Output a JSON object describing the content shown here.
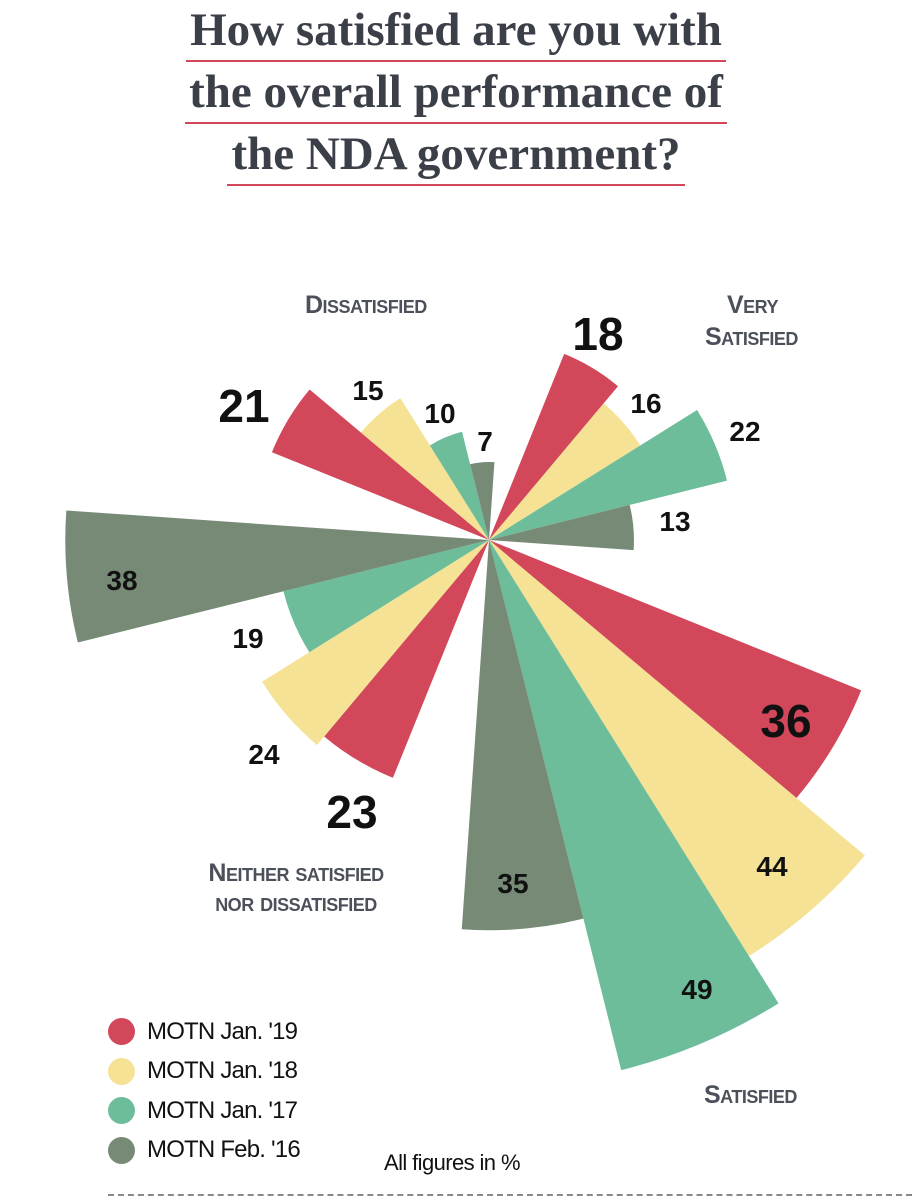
{
  "title_lines": [
    "How satisfied are you with",
    "the overall performance of",
    "the NDA government?"
  ],
  "note": "All figures in %",
  "chart_data": {
    "type": "polar-area",
    "title": "How satisfied are you with the overall performance of the NDA government?",
    "unit": "%",
    "categories": [
      "Very Satisfied",
      "Satisfied",
      "Neither satisfied nor dissatisfied",
      "Dissatisfied"
    ],
    "category_labels": {
      "very_satisfied": [
        "Very",
        "Satisfied"
      ],
      "satisfied": [
        "Satisfied"
      ],
      "neither": [
        "Neither satisfied",
        "nor dissatisfied"
      ],
      "dissatisfied": [
        "Dissatisfied"
      ]
    },
    "series": [
      {
        "name": "MOTN Jan. '19",
        "color": "#d2475a",
        "values": [
          18,
          36,
          23,
          21
        ]
      },
      {
        "name": "MOTN Jan. '18",
        "color": "#f5e294",
        "values": [
          16,
          44,
          24,
          15
        ]
      },
      {
        "name": "MOTN Jan. '17",
        "color": "#6dbd9b",
        "values": [
          22,
          49,
          19,
          10
        ]
      },
      {
        "name": "MOTN Feb. '16",
        "color": "#778a76",
        "values": [
          13,
          35,
          38,
          7
        ]
      }
    ],
    "legend_position": "bottom-left",
    "grid": false
  }
}
